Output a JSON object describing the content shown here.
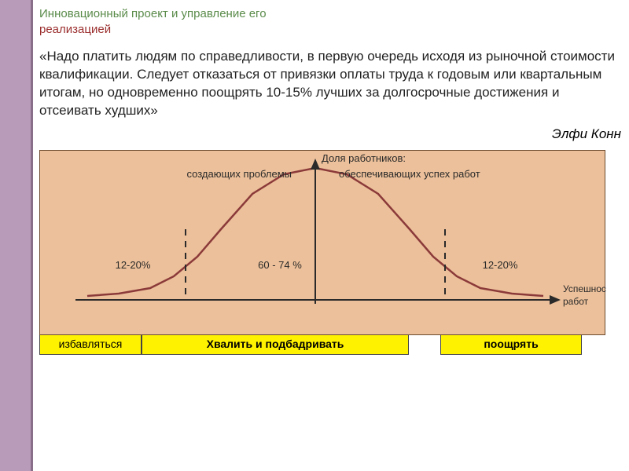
{
  "title_line1": "Инновационный проект и управление его",
  "title_line2": "реализацией",
  "quote": "«Надо платить людям по справедливости, в первую очередь исходя из рыночной стоимости квалификации. Следует отказаться от привязки оплаты труда к годовым или квартальным итогам, но одновременно поощрять 10-15% лучших за долгосрочные достижения и отсеивать худших»",
  "author": "Элфи Конн",
  "chart": {
    "type": "bell-curve",
    "top_label": "Доля работников:",
    "left_top": "создающих проблемы",
    "right_top": "обеспечивающих успех работ",
    "left_pct": "12-20%",
    "center_pct": "60 - 74 %",
    "right_pct": "12-20%",
    "x_axis_label": "Успешность\nработ",
    "curve_color": "#8b3a3a",
    "axis_color": "#2a2a2a",
    "dash_color": "#2a2a2a",
    "background_color": "#ecc09a",
    "text_color": "#2a2a2a",
    "label_fontsize": 13,
    "pct_fontsize": 13,
    "curve_points": [
      [
        60,
        185
      ],
      [
        100,
        182
      ],
      [
        140,
        175
      ],
      [
        170,
        160
      ],
      [
        200,
        135
      ],
      [
        230,
        100
      ],
      [
        270,
        55
      ],
      [
        310,
        30
      ],
      [
        350,
        22
      ],
      [
        390,
        30
      ],
      [
        430,
        55
      ],
      [
        470,
        100
      ],
      [
        500,
        135
      ],
      [
        530,
        160
      ],
      [
        560,
        175
      ],
      [
        600,
        182
      ],
      [
        640,
        185
      ]
    ],
    "y_axis_x": 350,
    "baseline_y": 190,
    "dash1_x": 185,
    "dash2_x": 515,
    "xlim": [
      40,
      660
    ],
    "ylim": [
      20,
      190
    ]
  },
  "actions": {
    "left": "избавляться",
    "center": "Хвалить и подбадривать",
    "right": "поощрять"
  }
}
